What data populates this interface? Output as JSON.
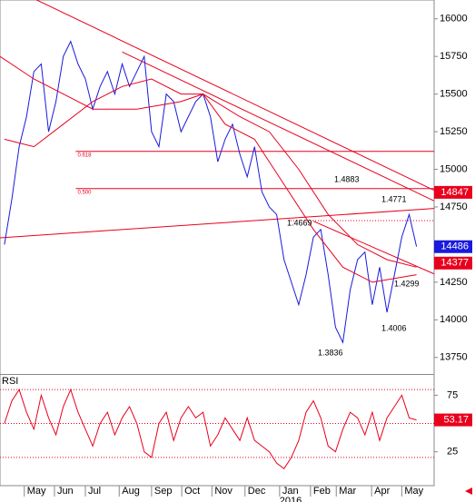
{
  "chart_data": [
    {
      "type": "line",
      "xlim": [
        -0.6,
        58.4
      ],
      "ylim": [
        13640,
        16125
      ],
      "yticks": [
        13750,
        14000,
        14250,
        14500,
        14750,
        15000,
        15250,
        15500,
        15750,
        16000
      ],
      "xticks": [
        {
          "value": 2.7,
          "label": "May"
        },
        {
          "value": 6.8,
          "label": "Jun"
        },
        {
          "value": 11,
          "label": "Jul"
        },
        {
          "value": 15.6,
          "label": "Aug"
        },
        {
          "value": 20,
          "label": "Sep"
        },
        {
          "value": 24.1,
          "label": "Oct"
        },
        {
          "value": 28.2,
          "label": "Nov"
        },
        {
          "value": 32.7,
          "label": "Dec"
        },
        {
          "value": 37.4,
          "label": "Jan"
        },
        {
          "value": 41.6,
          "label": "Feb"
        },
        {
          "value": 45.1,
          "label": "Mar"
        },
        {
          "value": 49.9,
          "label": "Apr"
        },
        {
          "value": 54,
          "label": "May"
        }
      ],
      "year_label": "2016",
      "series": [
        {
          "color": "#1a1adc",
          "x": [
            0,
            1,
            2,
            3,
            4,
            5,
            6,
            7,
            8,
            9,
            10,
            11,
            12,
            13,
            14,
            15,
            16,
            17,
            18,
            19,
            20,
            21,
            22,
            23,
            24,
            25,
            26,
            27,
            28,
            29,
            30,
            31,
            32,
            33,
            34,
            35,
            36,
            37,
            38,
            39,
            40,
            41,
            42,
            43,
            44,
            45,
            46,
            47,
            48,
            49,
            50,
            51,
            52,
            53,
            54,
            55,
            56
          ],
          "values": [
            14500,
            14800,
            15150,
            15350,
            15650,
            15700,
            15250,
            15450,
            15750,
            15850,
            15700,
            15600,
            15400,
            15550,
            15650,
            15500,
            15700,
            15550,
            15650,
            15750,
            15250,
            15150,
            15500,
            15450,
            15250,
            15350,
            15450,
            15500,
            15350,
            15050,
            15200,
            15300,
            15100,
            14950,
            15150,
            14850,
            14750,
            14700,
            14400,
            14250,
            14100,
            14300,
            14550,
            14600,
            14300,
            13950,
            13850,
            14200,
            14400,
            14450,
            14100,
            14350,
            14050,
            14300,
            14550,
            14700,
            14486
          ]
        },
        {
          "color": "#e8001c",
          "x": [
            0,
            4,
            8,
            12,
            16,
            20,
            24,
            27,
            30,
            34,
            38,
            42,
            46,
            50,
            56
          ],
          "values": [
            15200,
            15150,
            15300,
            15450,
            15550,
            15600,
            15500,
            15500,
            15300,
            15200,
            14900,
            14600,
            14350,
            14250,
            14300
          ]
        },
        {
          "color": "#e8001c",
          "x": [
            -0.6,
            4,
            8,
            12,
            18,
            24,
            27,
            32,
            36,
            40,
            44,
            48,
            52,
            56
          ],
          "values": [
            15750,
            15600,
            15500,
            15400,
            15400,
            15450,
            15500,
            15350,
            15250,
            15000,
            14700,
            14500,
            14400,
            14350
          ]
        }
      ],
      "trendlines": [
        {
          "x": [
            4.3,
            58.4
          ],
          "values": [
            16127,
            14860
          ],
          "color": "#e8001c"
        },
        {
          "x": [
            16,
            58.4
          ],
          "values": [
            15780,
            14790
          ],
          "color": "#e8001c"
        },
        {
          "x": [
            -0.6,
            58.4
          ],
          "values": [
            14545,
            14740
          ],
          "color": "#e8001c"
        },
        {
          "x": [
            42,
            58.4
          ],
          "values": [
            14655,
            14305
          ],
          "color": "#e8001c"
        }
      ],
      "levels": [
        {
          "value": 15119,
          "label": "0.618"
        },
        {
          "value": 14872,
          "label": "0.500"
        }
      ],
      "annotations": [
        "1.4883",
        "1.4771",
        "1.4669",
        "1.4299",
        "1.4006",
        "1.3836"
      ],
      "markers": [
        {
          "value": 14847,
          "color": "#e8001c"
        },
        {
          "value": 14377,
          "color": "#e8001c"
        }
      ]
    },
    {
      "type": "line",
      "title": "RSI",
      "ylim": [
        -5,
        93
      ],
      "yticks": [
        25,
        50,
        75
      ],
      "levels": [
        80,
        50,
        20
      ],
      "series": [
        {
          "color": "#e8001c",
          "values": [
            50,
            70,
            80,
            60,
            45,
            75,
            55,
            40,
            65,
            80,
            60,
            45,
            30,
            50,
            60,
            40,
            55,
            65,
            50,
            25,
            20,
            50,
            60,
            35,
            55,
            65,
            55,
            60,
            30,
            40,
            55,
            45,
            35,
            55,
            35,
            30,
            25,
            15,
            10,
            20,
            35,
            60,
            70,
            55,
            30,
            25,
            45,
            60,
            55,
            40,
            60,
            35,
            55,
            65,
            75,
            55,
            53.17
          ]
        }
      ]
    }
  ]
}
